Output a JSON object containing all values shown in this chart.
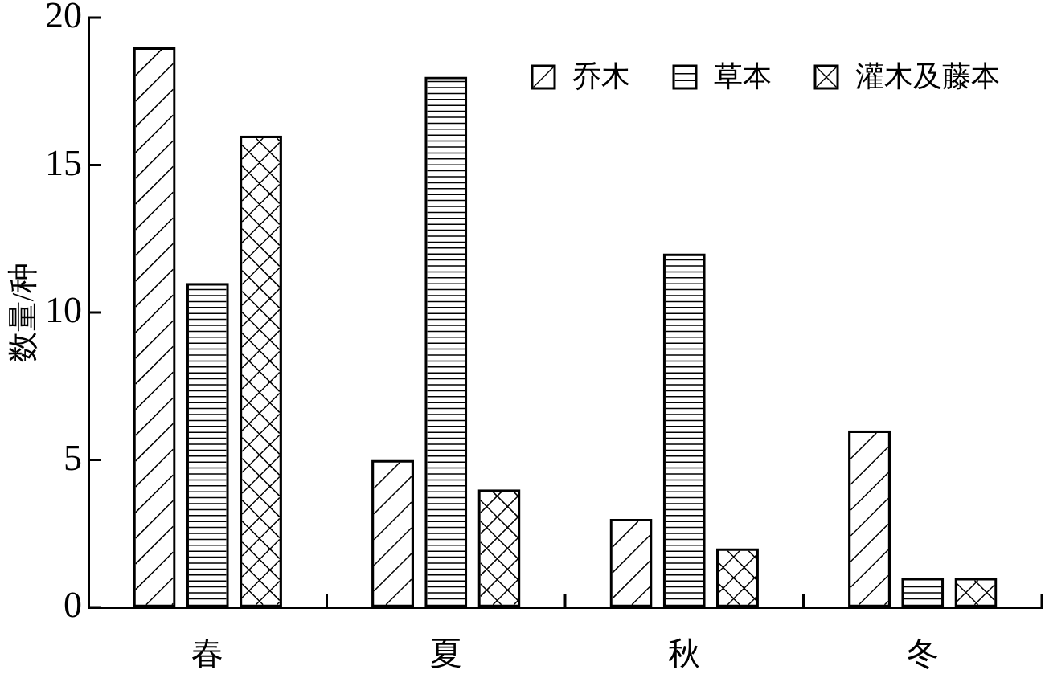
{
  "chart_data": {
    "type": "bar",
    "ylabel": "数量/种",
    "categories": [
      "春",
      "夏",
      "秋",
      "冬"
    ],
    "series": [
      {
        "name": "乔木",
        "color": "#000000",
        "values": [
          19,
          5,
          3,
          6
        ]
      },
      {
        "name": "草本",
        "color": "#000000",
        "values": [
          11,
          18,
          12,
          1
        ]
      },
      {
        "name": "灌木及藤本",
        "color": "#000000",
        "values": [
          16,
          4,
          2,
          1
        ]
      }
    ],
    "ylim": [
      0,
      20
    ],
    "yticks": [
      0,
      5,
      10,
      15,
      20
    ],
    "legend": "top right"
  }
}
